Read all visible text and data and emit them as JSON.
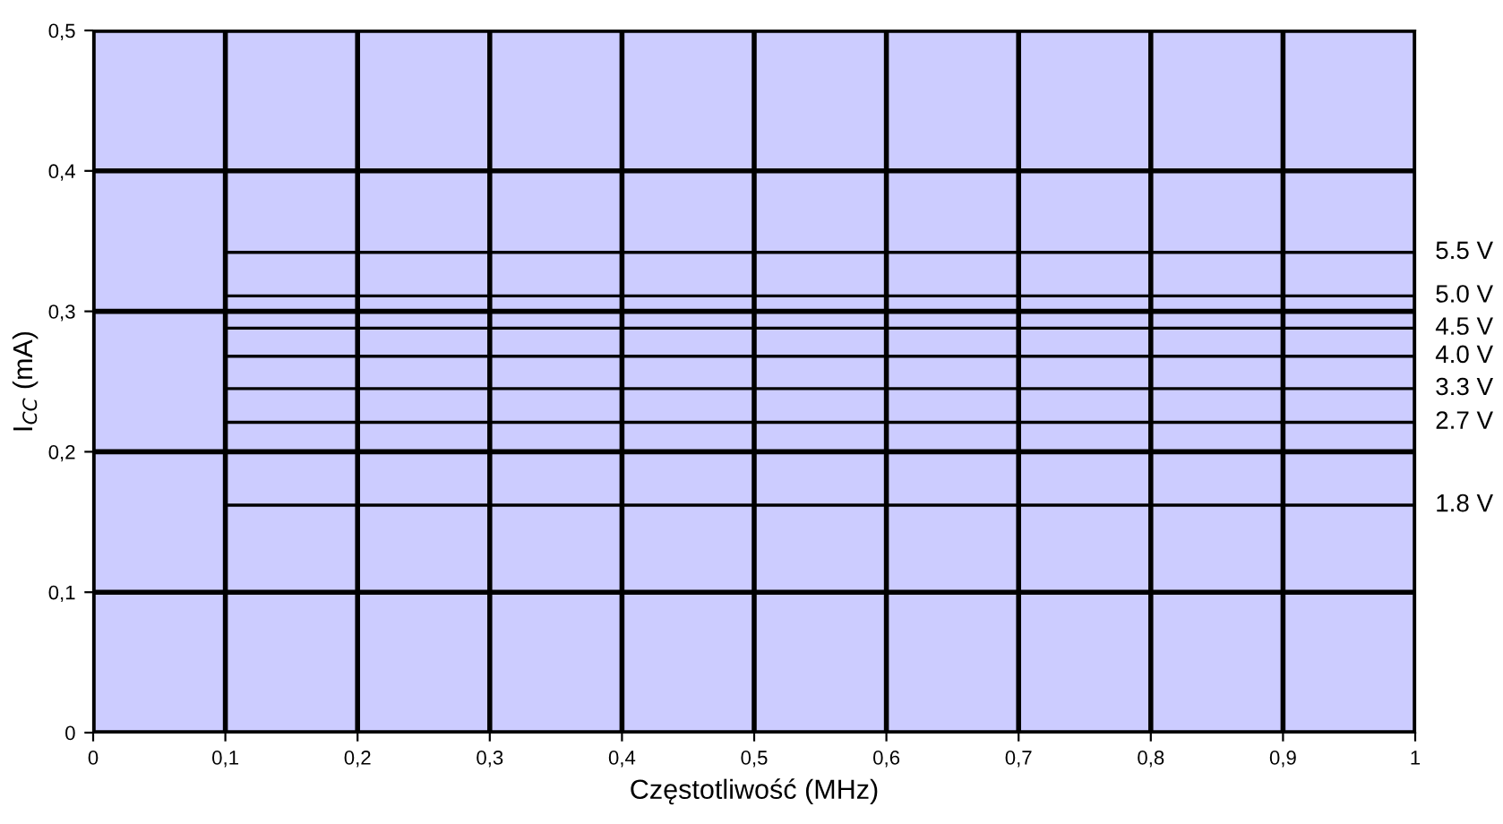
{
  "chart_data": {
    "type": "line",
    "xlabel": "Częstotliwość (MHz)",
    "ylabel": "I$_{CC}$ (mA)",
    "xlim": [
      0,
      1
    ],
    "ylim": [
      0,
      0.5
    ],
    "xticks": [
      0,
      {
        "value": 0.1,
        "label": "0,1"
      },
      {
        "value": 0.2,
        "label": "0,2"
      },
      {
        "value": 0.3,
        "label": "0,3"
      },
      {
        "value": 0.4,
        "label": "0,4"
      },
      {
        "value": 0.5,
        "label": "0,5"
      },
      {
        "value": 0.6,
        "label": "0,6"
      },
      {
        "value": 0.7,
        "label": "0,7"
      },
      {
        "value": 0.8,
        "label": "0,8"
      },
      {
        "value": 0.9,
        "label": "0,9"
      },
      1
    ],
    "yticks": [
      0,
      {
        "value": 0.1,
        "label": "0,1"
      },
      {
        "value": 0.2,
        "label": "0,2"
      },
      {
        "value": 0.3,
        "label": "0,3"
      },
      {
        "value": 0.4,
        "label": "0,4"
      },
      {
        "value": 0.5,
        "label": "0,5"
      }
    ],
    "grid": true,
    "legend": false,
    "marker": "none",
    "line_style": "solid",
    "x": [
      0.1,
      1
    ],
    "series": [
      {
        "name": "5.5 V",
        "color": "#000000",
        "values": [
          0.342,
          0.342
        ]
      },
      {
        "name": "5.0 V",
        "color": "#000000",
        "values": [
          0.311,
          0.311
        ]
      },
      {
        "name": "4.5 V",
        "color": "#000000",
        "values": [
          0.288,
          0.288
        ]
      },
      {
        "name": "4.0 V",
        "color": "#000000",
        "values": [
          0.268,
          0.268
        ]
      },
      {
        "name": "3.3 V",
        "color": "#000000",
        "values": [
          0.245,
          0.245
        ]
      },
      {
        "name": "2.7 V",
        "color": "#000000",
        "values": [
          0.221,
          0.221
        ]
      },
      {
        "name": "1.8 V",
        "color": "#000000",
        "values": [
          0.162,
          0.162
        ]
      }
    ]
  }
}
